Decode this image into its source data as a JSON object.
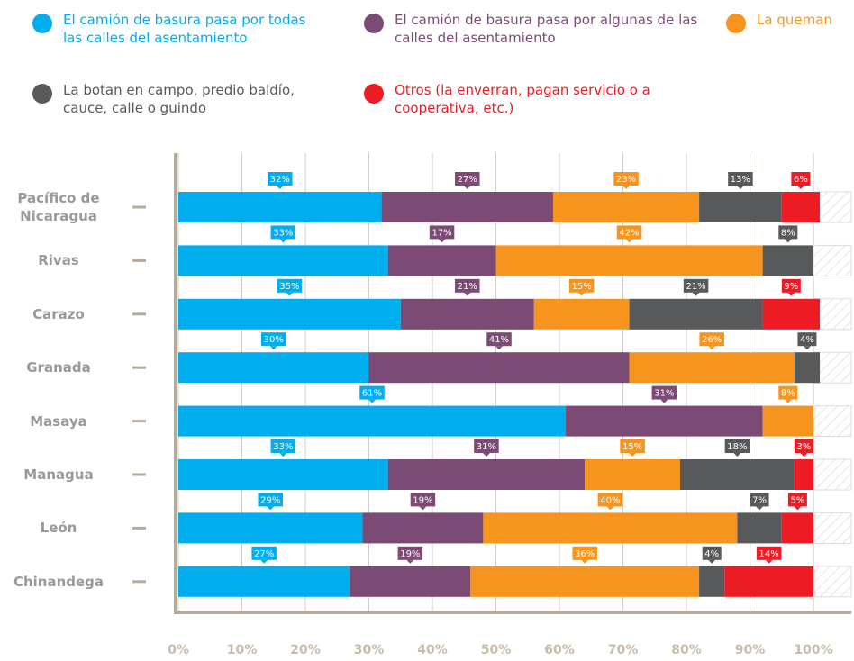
{
  "chart_data": {
    "type": "bar",
    "orientation": "horizontal",
    "stacked": true,
    "categories": [
      "Pacífico de Nicaragua",
      "Rivas",
      "Carazo",
      "Granada",
      "Masaya",
      "Managua",
      "León",
      "Chinandega"
    ],
    "series": [
      {
        "name": "El camión de basura pasa por todas las calles del asentamiento",
        "color": "#00aeef",
        "values": [
          32,
          33,
          35,
          30,
          61,
          33,
          29,
          27
        ],
        "value_labels": [
          "32%",
          "33%",
          "35%",
          "30%",
          "61%",
          "33%",
          "29%",
          "27%"
        ]
      },
      {
        "name": "El camión de basura pasa por algunas de las calles del asentamiento",
        "color": "#7b4b76",
        "values": [
          27,
          17,
          21,
          41,
          31,
          31,
          19,
          19
        ],
        "value_labels": [
          "27%",
          "17%",
          "21%",
          "41%",
          "31%",
          "31%",
          "19%",
          "19%"
        ]
      },
      {
        "name": "La queman",
        "color": "#f7941d",
        "values": [
          23,
          42,
          15,
          26,
          8,
          15,
          40,
          36
        ],
        "value_labels": [
          "23%",
          "42%",
          "15%",
          "26%",
          "8%",
          "15%",
          "40%",
          "36%"
        ]
      },
      {
        "name": "La botan en campo, predio baldío, cauce, calle o guindo",
        "color": "#58595b",
        "values": [
          13,
          8,
          21,
          4,
          null,
          18,
          7,
          4
        ],
        "value_labels": [
          "13%",
          "8%",
          "21%",
          "4%",
          null,
          "18%",
          "7%",
          "4%"
        ]
      },
      {
        "name": "Otros (la enverran, pagan servicio o a cooperativa, etc.)",
        "color": "#ed1c24",
        "values": [
          6,
          null,
          9,
          null,
          null,
          3,
          5,
          14
        ],
        "value_labels": [
          "6%",
          null,
          "9%",
          null,
          null,
          "3%",
          "5%",
          "14%"
        ]
      }
    ],
    "xlim": [
      0,
      100
    ],
    "xticks": [
      {
        "value": 0,
        "label": "0%"
      },
      {
        "value": 10,
        "label": "10%"
      },
      {
        "value": 20,
        "label": "20%"
      },
      {
        "value": 30,
        "label": "30%"
      },
      {
        "value": 40,
        "label": "40%"
      },
      {
        "value": 50,
        "label": "50%"
      },
      {
        "value": 60,
        "label": "60%"
      },
      {
        "value": 70,
        "label": "70%"
      },
      {
        "value": 80,
        "label": "80%"
      },
      {
        "value": 90,
        "label": "90%"
      },
      {
        "value": 100,
        "label": "100%"
      }
    ],
    "grid": true,
    "legend": "top"
  }
}
